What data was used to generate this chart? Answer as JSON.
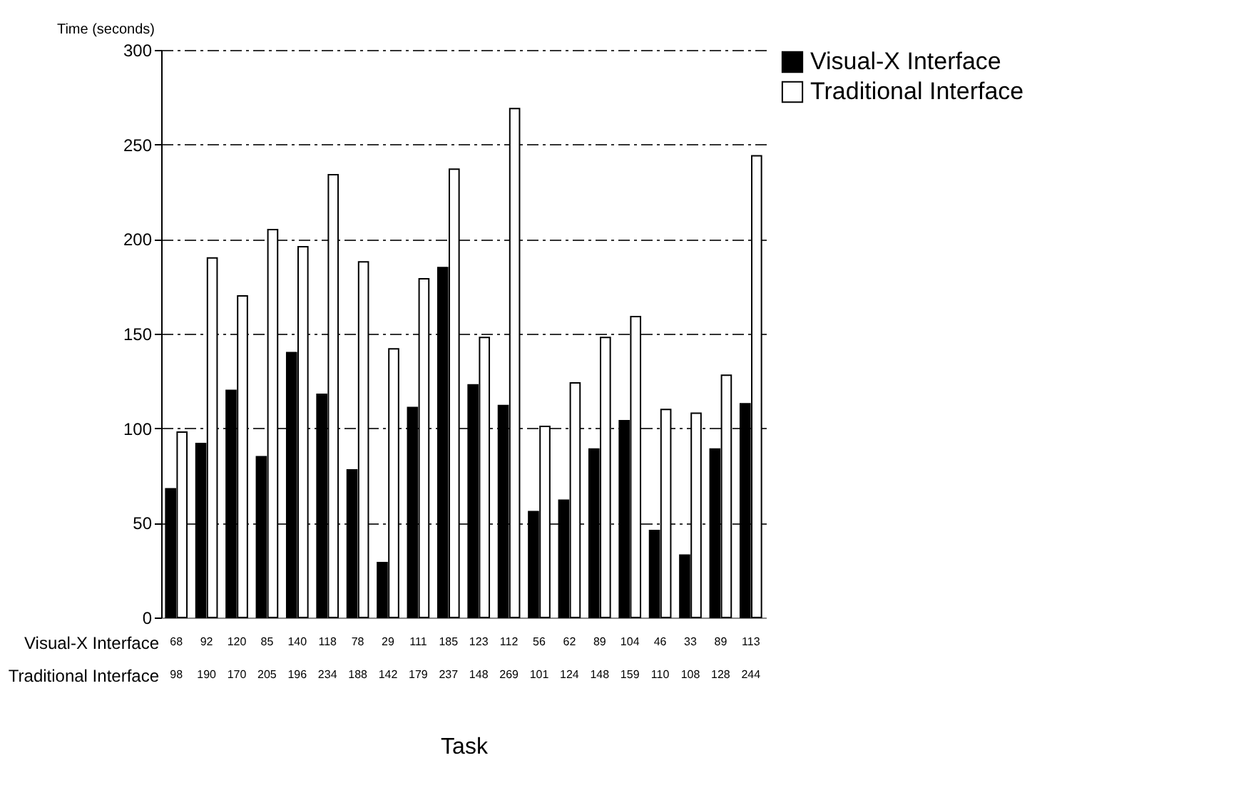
{
  "chart_data": {
    "type": "bar",
    "xlabel": "Task",
    "ylabel": "Time (seconds)",
    "categories": [
      null,
      null,
      null,
      null,
      null,
      null,
      null,
      null,
      null,
      null,
      null,
      null,
      null,
      null,
      null,
      null,
      null,
      null,
      null,
      null
    ],
    "series": [
      {
        "name": "Visual-X  Interface",
        "color": "#000000",
        "values": [
          68,
          92,
          120,
          85,
          140,
          118,
          78,
          29,
          111,
          185,
          123,
          112,
          56,
          62,
          89,
          104,
          46,
          33,
          89,
          113
        ]
      },
      {
        "name": "Traditional Interface",
        "color": "#ffffff",
        "values": [
          98,
          190,
          170,
          205,
          196,
          234,
          188,
          142,
          179,
          237,
          148,
          269,
          101,
          124,
          148,
          159,
          110,
          108,
          128,
          244
        ]
      }
    ],
    "ylim": [
      0,
      300
    ],
    "yticks": [
      0,
      50,
      100,
      150,
      200,
      250,
      300
    ],
    "grid": "y",
    "legend": "right",
    "data_labels": true
  }
}
